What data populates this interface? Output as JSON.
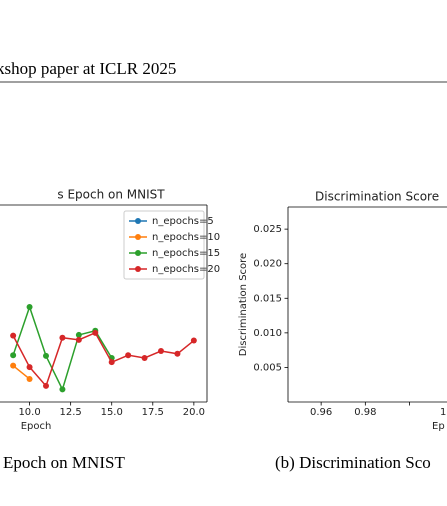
{
  "header": {
    "title": "kshop paper at ICLR 2025"
  },
  "chart_data": [
    {
      "type": "line",
      "title": "s Epoch on MNIST",
      "x_label": "Epoch",
      "x": [
        9,
        10,
        11,
        12,
        13,
        14,
        15,
        16,
        17,
        18,
        19,
        20
      ],
      "xlim": [
        8.2,
        20.8
      ],
      "xticks": [
        {
          "value": 10,
          "label": "10.0"
        },
        12.5,
        {
          "value": 15,
          "label": "15.0"
        },
        17.5,
        {
          "value": 20,
          "label": "20.0"
        }
      ],
      "ylim": [
        0,
        0.0282
      ],
      "legend": "upper right",
      "series": [
        {
          "name": "n_epochs=5",
          "color": "#1f77b4",
          "values": [
            null,
            null,
            null,
            null,
            null,
            null,
            null,
            null,
            null,
            null,
            null,
            null
          ]
        },
        {
          "name": "n_epochs=10",
          "color": "#ff7f0e",
          "values": [
            0.0052,
            0.0033,
            null,
            null,
            null,
            null,
            null,
            null,
            null,
            null,
            null,
            null
          ]
        },
        {
          "name": "n_epochs=15",
          "color": "#2ca02c",
          "values": [
            0.0067,
            0.0136,
            0.0066,
            0.0018,
            0.0096,
            0.0102,
            0.0063,
            null,
            null,
            null,
            null,
            null
          ]
        },
        {
          "name": "n_epochs=20",
          "color": "#d62728",
          "values": [
            0.0095,
            0.005,
            0.0023,
            0.0092,
            0.0089,
            0.0099,
            0.0057,
            0.0067,
            0.0063,
            0.0073,
            0.0069,
            0.0088
          ]
        }
      ]
    },
    {
      "type": "line",
      "title": "Discrimination Score",
      "x_label": "Ep",
      "y_label": "Discrimination Score",
      "xlim": [
        0.945,
        1.05
      ],
      "xticks": [
        0.96,
        0.98,
        {
          "value": 1,
          "label": "1."
        }
      ],
      "ylim": [
        0,
        0.0282
      ],
      "yticks": [
        0.005,
        {
          "value": 0.01,
          "label": "0.010"
        },
        0.015,
        {
          "value": 0.02,
          "label": "0.020"
        },
        0.025
      ],
      "series": []
    }
  ],
  "captions": [
    "Epoch on MNIST",
    "(b) Discrimination Sco"
  ]
}
